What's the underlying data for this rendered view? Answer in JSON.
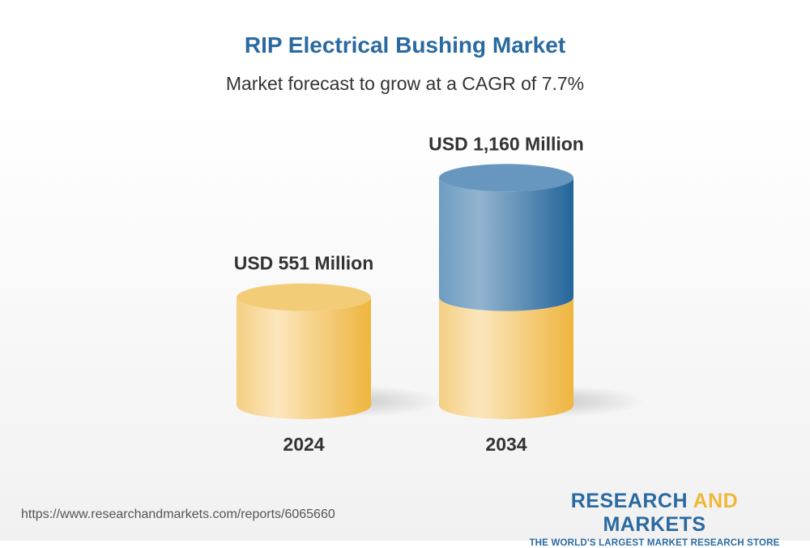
{
  "title": "RIP Electrical Bushing Market",
  "subtitle": "Market forecast to grow at a CAGR of 7.7%",
  "chart_data": {
    "type": "bar",
    "style": "3d-cylinder",
    "categories": [
      "2024",
      "2034"
    ],
    "values": [
      551,
      1160
    ],
    "unit": "USD Million",
    "data_labels": [
      "USD 551 Million",
      "USD 1,160 Million"
    ],
    "colors": {
      "base": "#f2bd48",
      "growth": "#2a6aa0"
    }
  },
  "footer": {
    "url": "https://www.researchandmarkets.com/reports/6065660",
    "logo_part1": "RESEARCH ",
    "logo_part2": "AND",
    "logo_part3": " MARKETS",
    "tagline": "THE WORLD'S LARGEST MARKET RESEARCH STORE"
  }
}
